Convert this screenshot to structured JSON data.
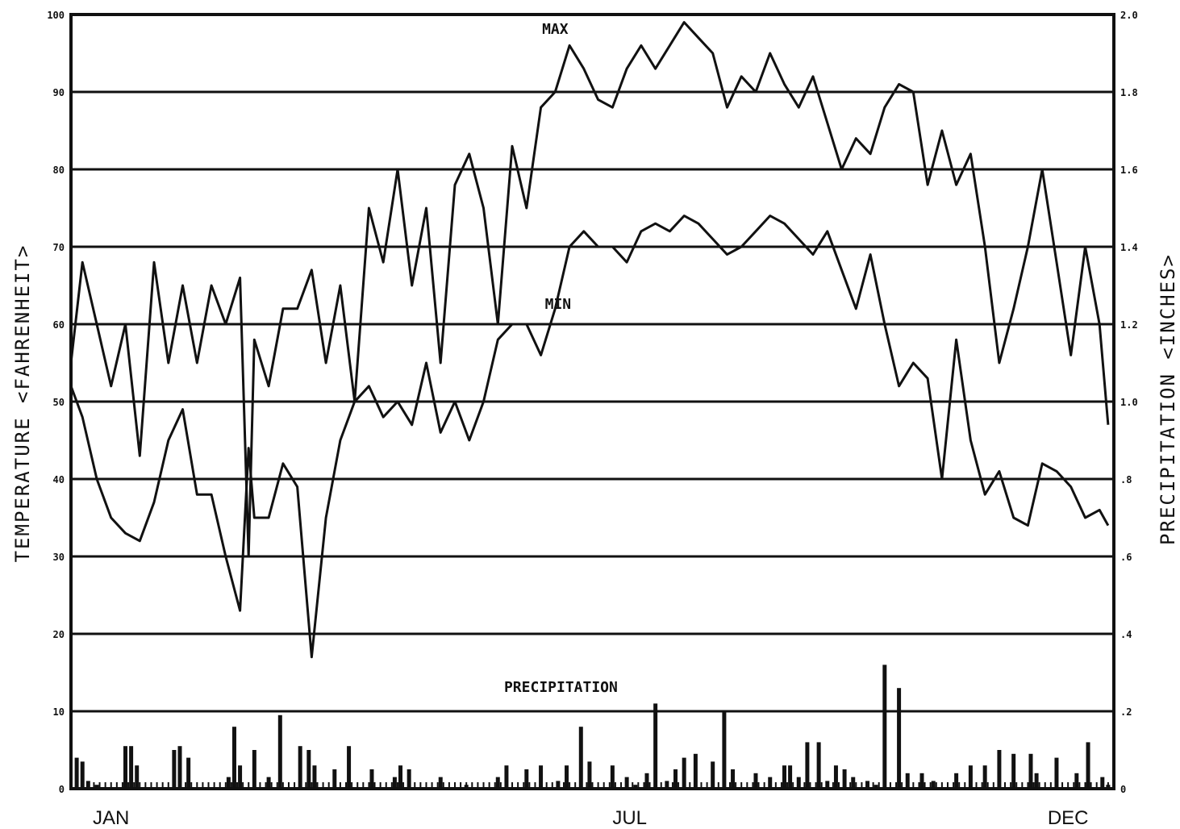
{
  "chart_data": {
    "type": "line",
    "title": "",
    "xlabel": "",
    "ylabel": "TEMPERATURE <FAHRENHEIT>",
    "ylabel_right": "PRECIPITATION <INCHES>",
    "ylim": [
      0,
      100
    ],
    "ylim_right": [
      0,
      2.0
    ],
    "y_ticks": [
      "100",
      "90",
      "80",
      "70",
      "60",
      "50",
      "40",
      "30",
      "20",
      "10",
      "0"
    ],
    "y_ticks_right": [
      "2.0",
      "1.8",
      "1.6",
      "1.4",
      "1.2",
      "1.0",
      ".8",
      ".6",
      ".4",
      ".2",
      "0"
    ],
    "x_labels": [
      {
        "day": 15,
        "label": "JAN"
      },
      {
        "day": 196,
        "label": "JUL"
      },
      {
        "day": 349,
        "label": "DEC"
      }
    ],
    "grid": true,
    "annotations": [
      {
        "text": "MAX",
        "day": 170,
        "value": 97.5
      },
      {
        "text": "MIN",
        "day": 171,
        "value": 62
      },
      {
        "text": "PRECIPITATION",
        "day": 172,
        "value": 12.5
      }
    ],
    "series": [
      {
        "name": "MAX",
        "x": [
          1,
          5,
          10,
          15,
          20,
          25,
          30,
          35,
          40,
          45,
          50,
          55,
          60,
          63,
          65,
          70,
          75,
          80,
          85,
          90,
          95,
          100,
          105,
          110,
          115,
          120,
          125,
          130,
          135,
          140,
          145,
          150,
          155,
          160,
          165,
          170,
          175,
          180,
          185,
          190,
          195,
          200,
          205,
          210,
          215,
          220,
          225,
          230,
          235,
          240,
          245,
          250,
          255,
          260,
          265,
          270,
          275,
          280,
          285,
          290,
          295,
          300,
          305,
          310,
          315,
          320,
          325,
          330,
          335,
          340,
          345,
          350,
          355,
          360,
          363
        ],
        "values": [
          55,
          68,
          60,
          52,
          60,
          43,
          68,
          55,
          65,
          55,
          65,
          60,
          66,
          30,
          58,
          52,
          62,
          62,
          67,
          55,
          65,
          50,
          75,
          68,
          80,
          65,
          75,
          55,
          78,
          82,
          75,
          60,
          83,
          75,
          88,
          90,
          96,
          93,
          89,
          88,
          93,
          96,
          93,
          96,
          99,
          97,
          95,
          88,
          92,
          90,
          95,
          91,
          88,
          92,
          86,
          80,
          84,
          82,
          88,
          91,
          90,
          78,
          85,
          78,
          82,
          70,
          55,
          62,
          70,
          80,
          68,
          56,
          70,
          60,
          47
        ]
      },
      {
        "name": "MIN",
        "x": [
          1,
          5,
          10,
          15,
          20,
          25,
          30,
          35,
          40,
          45,
          50,
          55,
          60,
          63,
          65,
          70,
          75,
          80,
          85,
          90,
          95,
          100,
          105,
          110,
          115,
          120,
          125,
          130,
          135,
          140,
          145,
          150,
          155,
          160,
          165,
          170,
          175,
          180,
          185,
          190,
          195,
          200,
          205,
          210,
          215,
          220,
          225,
          230,
          235,
          240,
          245,
          250,
          255,
          260,
          265,
          270,
          275,
          280,
          285,
          290,
          295,
          300,
          305,
          310,
          315,
          320,
          325,
          330,
          335,
          340,
          345,
          350,
          355,
          360,
          363
        ],
        "values": [
          52,
          48,
          40,
          35,
          33,
          32,
          37,
          45,
          49,
          38,
          38,
          30,
          23,
          44,
          35,
          35,
          42,
          39,
          17,
          35,
          45,
          50,
          52,
          48,
          50,
          47,
          55,
          46,
          50,
          45,
          50,
          58,
          60,
          60,
          56,
          62,
          70,
          72,
          70,
          70,
          68,
          72,
          73,
          72,
          74,
          73,
          71,
          69,
          70,
          72,
          74,
          73,
          71,
          69,
          72,
          67,
          62,
          69,
          60,
          52,
          55,
          53,
          40,
          58,
          45,
          38,
          41,
          35,
          34,
          42,
          41,
          39,
          35,
          36,
          34
        ]
      }
    ],
    "precipitation": {
      "name": "PRECIPITATION",
      "days": [
        3,
        5,
        7,
        10,
        20,
        22,
        24,
        37,
        39,
        42,
        56,
        58,
        60,
        65,
        70,
        74,
        81,
        84,
        86,
        93,
        98,
        106,
        114,
        116,
        119,
        130,
        139,
        150,
        153,
        160,
        165,
        171,
        174,
        179,
        182,
        190,
        195,
        198,
        202,
        205,
        209,
        212,
        215,
        219,
        225,
        229,
        232,
        240,
        245,
        250,
        252,
        255,
        258,
        262,
        265,
        268,
        271,
        274,
        279,
        282,
        285,
        290,
        293,
        298,
        302,
        310,
        315,
        320,
        325,
        330,
        336,
        338,
        345,
        352,
        356,
        361,
        363
      ],
      "values": [
        0.08,
        0.07,
        0.02,
        0.01,
        0.11,
        0.11,
        0.06,
        0.1,
        0.11,
        0.08,
        0.03,
        0.16,
        0.06,
        0.1,
        0.03,
        0.19,
        0.11,
        0.1,
        0.06,
        0.05,
        0.11,
        0.05,
        0.03,
        0.06,
        0.05,
        0.03,
        0.01,
        0.03,
        0.06,
        0.05,
        0.06,
        0.02,
        0.06,
        0.16,
        0.07,
        0.06,
        0.03,
        0.01,
        0.04,
        0.22,
        0.02,
        0.05,
        0.08,
        0.09,
        0.07,
        0.2,
        0.05,
        0.04,
        0.03,
        0.06,
        0.06,
        0.03,
        0.12,
        0.12,
        0.02,
        0.06,
        0.05,
        0.03,
        0.02,
        0.01,
        0.32,
        0.26,
        0.04,
        0.04,
        0.02,
        0.04,
        0.06,
        0.06,
        0.1,
        0.09,
        0.09,
        0.04,
        0.08,
        0.04,
        0.12,
        0.03,
        0.01
      ]
    }
  }
}
